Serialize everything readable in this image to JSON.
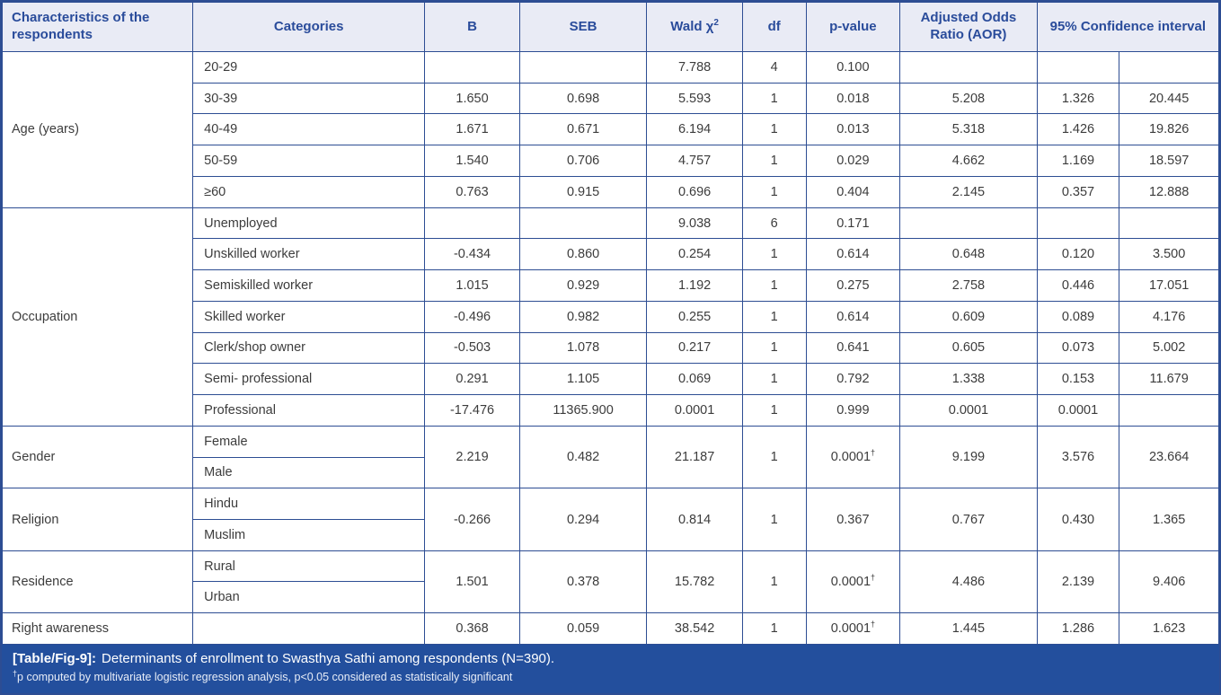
{
  "header": {
    "characteristics": "Characteristics of the respondents",
    "categories": "Categories",
    "b": "B",
    "seb": "SEB",
    "wald_label": "Wald χ",
    "wald_sup": "2",
    "df": "df",
    "p_value": "p-value",
    "aor": "Adjusted Odds Ratio (AOR)",
    "ci": "95% Confidence interval"
  },
  "groups": [
    {
      "type": "rows",
      "name": "Age (years)",
      "rows": [
        {
          "cat": "20-29",
          "b": "",
          "seb": "",
          "wald": "7.788",
          "df": "4",
          "p": "0.100",
          "dagger": false,
          "aor": "",
          "lo": "",
          "hi": ""
        },
        {
          "cat": "30-39",
          "b": "1.650",
          "seb": "0.698",
          "wald": "5.593",
          "df": "1",
          "p": "0.018",
          "dagger": false,
          "aor": "5.208",
          "lo": "1.326",
          "hi": "20.445"
        },
        {
          "cat": "40-49",
          "b": "1.671",
          "seb": "0.671",
          "wald": "6.194",
          "df": "1",
          "p": "0.013",
          "dagger": false,
          "aor": "5.318",
          "lo": "1.426",
          "hi": "19.826"
        },
        {
          "cat": "50-59",
          "b": "1.540",
          "seb": "0.706",
          "wald": "4.757",
          "df": "1",
          "p": "0.029",
          "dagger": false,
          "aor": "4.662",
          "lo": "1.169",
          "hi": "18.597"
        },
        {
          "cat": "≥60",
          "b": "0.763",
          "seb": "0.915",
          "wald": "0.696",
          "df": "1",
          "p": "0.404",
          "dagger": false,
          "aor": "2.145",
          "lo": "0.357",
          "hi": "12.888"
        }
      ]
    },
    {
      "type": "rows",
      "name": "Occupation",
      "rows": [
        {
          "cat": "Unemployed",
          "b": "",
          "seb": "",
          "wald": "9.038",
          "df": "6",
          "p": "0.171",
          "dagger": false,
          "aor": "",
          "lo": "",
          "hi": ""
        },
        {
          "cat": "Unskilled worker",
          "b": "-0.434",
          "seb": "0.860",
          "wald": "0.254",
          "df": "1",
          "p": "0.614",
          "dagger": false,
          "aor": "0.648",
          "lo": "0.120",
          "hi": "3.500"
        },
        {
          "cat": "Semiskilled worker",
          "b": "1.015",
          "seb": "0.929",
          "wald": "1.192",
          "df": "1",
          "p": "0.275",
          "dagger": false,
          "aor": "2.758",
          "lo": "0.446",
          "hi": "17.051"
        },
        {
          "cat": "Skilled worker",
          "b": "-0.496",
          "seb": "0.982",
          "wald": "0.255",
          "df": "1",
          "p": "0.614",
          "dagger": false,
          "aor": "0.609",
          "lo": "0.089",
          "hi": "4.176"
        },
        {
          "cat": "Clerk/shop owner",
          "b": "-0.503",
          "seb": "1.078",
          "wald": "0.217",
          "df": "1",
          "p": "0.641",
          "dagger": false,
          "aor": "0.605",
          "lo": "0.073",
          "hi": "5.002"
        },
        {
          "cat": "Semi- professional",
          "b": "0.291",
          "seb": "1.105",
          "wald": "0.069",
          "df": "1",
          "p": "0.792",
          "dagger": false,
          "aor": "1.338",
          "lo": "0.153",
          "hi": "11.679"
        },
        {
          "cat": "Professional",
          "b": "-17.476",
          "seb": "11365.900",
          "wald": "0.0001",
          "df": "1",
          "p": "0.999",
          "dagger": false,
          "aor": "0.0001",
          "lo": "0.0001",
          "hi": ""
        }
      ]
    },
    {
      "type": "merged",
      "name": "Gender",
      "categories": [
        "Female",
        "Male"
      ],
      "row": {
        "b": "2.219",
        "seb": "0.482",
        "wald": "21.187",
        "df": "1",
        "p": "0.0001",
        "dagger": true,
        "aor": "9.199",
        "lo": "3.576",
        "hi": "23.664"
      }
    },
    {
      "type": "merged",
      "name": "Religion",
      "categories": [
        "Hindu",
        "Muslim"
      ],
      "row": {
        "b": "-0.266",
        "seb": "0.294",
        "wald": "0.814",
        "df": "1",
        "p": "0.367",
        "dagger": false,
        "aor": "0.767",
        "lo": "0.430",
        "hi": "1.365"
      }
    },
    {
      "type": "merged",
      "name": "Residence",
      "categories": [
        "Rural",
        "Urban"
      ],
      "row": {
        "b": "1.501",
        "seb": "0.378",
        "wald": "15.782",
        "df": "1",
        "p": "0.0001",
        "dagger": true,
        "aor": "4.486",
        "lo": "2.139",
        "hi": "9.406"
      }
    },
    {
      "type": "rows",
      "name": "Right awareness",
      "rows": [
        {
          "cat": "",
          "b": "0.368",
          "seb": "0.059",
          "wald": "38.542",
          "df": "1",
          "p": "0.0001",
          "dagger": true,
          "aor": "1.445",
          "lo": "1.286",
          "hi": "1.623"
        }
      ]
    }
  ],
  "caption": {
    "label": "[Table/Fig-9]:",
    "text": "Determinants of enrollment to Swasthya Sathi among respondents (N=390).",
    "dagger": "†",
    "footnote": "p computed by multivariate logistic regression analysis, p<0.05 considered as statistically significant"
  }
}
